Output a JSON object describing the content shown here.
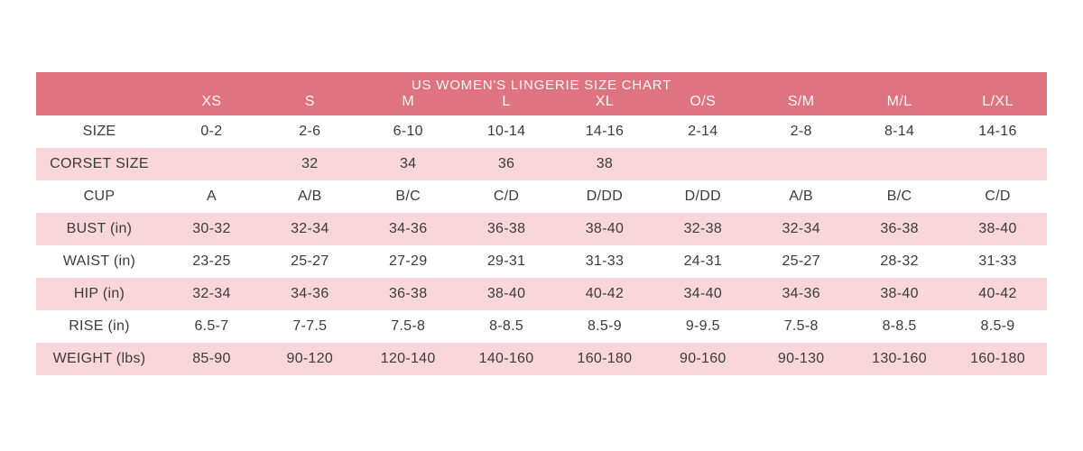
{
  "colors": {
    "header_bg": "#dd747f",
    "header_text": "#fdf6f6",
    "row_pink": "#f8d6da",
    "row_white": "#ffffff",
    "text": "#3b3b3b",
    "page_bg": "#ffffff"
  },
  "chart_data": {
    "type": "table",
    "title": "US WOMEN'S LINGERIE SIZE CHART",
    "columns": [
      "XS",
      "S",
      "M",
      "L",
      "XL",
      "O/S",
      "S/M",
      "M/L",
      "L/XL"
    ],
    "rows": [
      {
        "label": "SIZE",
        "values": [
          "0-2",
          "2-6",
          "6-10",
          "10-14",
          "14-16",
          "2-14",
          "2-8",
          "8-14",
          "14-16"
        ]
      },
      {
        "label": "CORSET SIZE",
        "values": [
          "",
          "32",
          "34",
          "36",
          "38",
          "",
          "",
          "",
          ""
        ]
      },
      {
        "label": "CUP",
        "values": [
          "A",
          "A/B",
          "B/C",
          "C/D",
          "D/DD",
          "D/DD",
          "A/B",
          "B/C",
          "C/D"
        ]
      },
      {
        "label": "BUST (in)",
        "values": [
          "30-32",
          "32-34",
          "34-36",
          "36-38",
          "38-40",
          "32-38",
          "32-34",
          "36-38",
          "38-40"
        ]
      },
      {
        "label": "WAIST (in)",
        "values": [
          "23-25",
          "25-27",
          "27-29",
          "29-31",
          "31-33",
          "24-31",
          "25-27",
          "28-32",
          "31-33"
        ]
      },
      {
        "label": "HIP (in)",
        "values": [
          "32-34",
          "34-36",
          "36-38",
          "38-40",
          "40-42",
          "34-40",
          "34-36",
          "38-40",
          "40-42"
        ]
      },
      {
        "label": "RISE (in)",
        "values": [
          "6.5-7",
          "7-7.5",
          "7.5-8",
          "8-8.5",
          "8.5-9",
          "9-9.5",
          "7.5-8",
          "8-8.5",
          "8.5-9"
        ]
      },
      {
        "label": "WEIGHT (lbs)",
        "values": [
          "85-90",
          "90-120",
          "120-140",
          "140-160",
          "160-180",
          "90-160",
          "90-130",
          "130-160",
          "160-180"
        ]
      }
    ],
    "layout": {
      "legend": "none",
      "grid": "off",
      "striped_rows": true,
      "stripe_pattern": "alternating white/pink starting white"
    }
  }
}
